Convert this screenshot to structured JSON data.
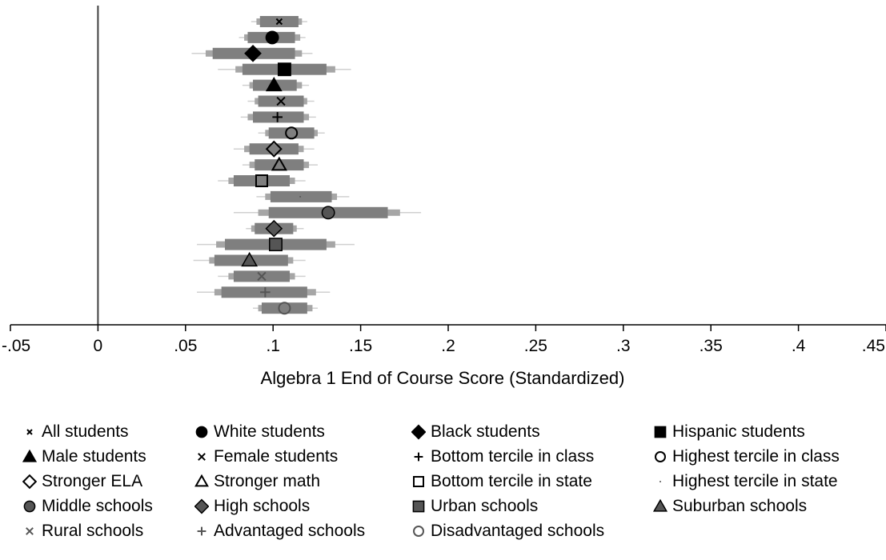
{
  "chart_data": {
    "type": "forest",
    "xlabel": "Algebra 1 End of Course Score (Standardized)",
    "xlim": [
      -0.05,
      0.45
    ],
    "xticks": [
      {
        "value": -0.05,
        "label": "-.05"
      },
      {
        "value": 0,
        "label": "0"
      },
      {
        "value": 0.05,
        "label": ".05"
      },
      {
        "value": 0.1,
        "label": ".1"
      },
      {
        "value": 0.15,
        "label": ".15"
      },
      {
        "value": 0.2,
        "label": ".2"
      },
      {
        "value": 0.25,
        "label": ".25"
      },
      {
        "value": 0.3,
        "label": ".3"
      },
      {
        "value": 0.35,
        "label": ".35"
      },
      {
        "value": 0.4,
        "label": ".4"
      },
      {
        "value": 0.45,
        "label": ".45"
      }
    ],
    "reference_line": 0,
    "grid": false,
    "legend_position": "bottom",
    "series": [
      {
        "name": "All students",
        "marker": "x-small",
        "fill": "#000000",
        "estimate": 0.1035,
        "ci90": [
          0.0925,
          0.1145
        ],
        "ci95": [
          0.0905,
          0.1165
        ],
        "ci99": [
          0.0875,
          0.1195
        ]
      },
      {
        "name": "White students",
        "marker": "circle",
        "fill": "#000000",
        "estimate": 0.0995,
        "ci90": [
          0.0855,
          0.1125
        ],
        "ci95": [
          0.0835,
          0.1155
        ],
        "ci99": [
          0.0805,
          0.1185
        ]
      },
      {
        "name": "Black students",
        "marker": "diamond",
        "fill": "#000000",
        "estimate": 0.0885,
        "ci90": [
          0.0655,
          0.1125
        ],
        "ci95": [
          0.0615,
          0.1165
        ],
        "ci99": [
          0.0535,
          0.1225
        ]
      },
      {
        "name": "Hispanic students",
        "marker": "square",
        "fill": "#000000",
        "estimate": 0.1065,
        "ci90": [
          0.0825,
          0.1305
        ],
        "ci95": [
          0.0785,
          0.1355
        ],
        "ci99": [
          0.0685,
          0.1445
        ]
      },
      {
        "name": "Male students",
        "marker": "triangle",
        "fill": "#000000",
        "estimate": 0.1005,
        "ci90": [
          0.0885,
          0.1135
        ],
        "ci95": [
          0.0865,
          0.1165
        ],
        "ci99": [
          0.0825,
          0.1205
        ]
      },
      {
        "name": "Female students",
        "marker": "x",
        "fill": "#000000",
        "estimate": 0.1045,
        "ci90": [
          0.0915,
          0.1175
        ],
        "ci95": [
          0.0895,
          0.1195
        ],
        "ci99": [
          0.0855,
          0.1235
        ]
      },
      {
        "name": "Bottom tercile in class",
        "marker": "plus",
        "fill": "#000000",
        "estimate": 0.1025,
        "ci90": [
          0.0885,
          0.1175
        ],
        "ci95": [
          0.0855,
          0.1205
        ],
        "ci99": [
          0.0815,
          0.1245
        ]
      },
      {
        "name": "Highest tercile in class",
        "marker": "circle-hollow",
        "fill": "#000000",
        "estimate": 0.1105,
        "ci90": [
          0.0975,
          0.1235
        ],
        "ci95": [
          0.0955,
          0.1255
        ],
        "ci99": [
          0.0915,
          0.1295
        ]
      },
      {
        "name": "Stronger ELA",
        "marker": "diamond-hollow",
        "fill": "#000000",
        "estimate": 0.1005,
        "ci90": [
          0.0865,
          0.1145
        ],
        "ci95": [
          0.0835,
          0.1175
        ],
        "ci99": [
          0.0775,
          0.1235
        ]
      },
      {
        "name": "Stronger math",
        "marker": "triangle-hollow",
        "fill": "#000000",
        "estimate": 0.1035,
        "ci90": [
          0.0895,
          0.1175
        ],
        "ci95": [
          0.0865,
          0.1205
        ],
        "ci99": [
          0.0825,
          0.1255
        ]
      },
      {
        "name": "Bottom tercile in state",
        "marker": "square-hollow",
        "fill": "#000000",
        "estimate": 0.0935,
        "ci90": [
          0.0775,
          0.1095
        ],
        "ci95": [
          0.0745,
          0.1125
        ],
        "ci99": [
          0.0685,
          0.1185
        ]
      },
      {
        "name": "Highest tercile in state",
        "marker": "dot",
        "fill": "#555555",
        "estimate": 0.1155,
        "ci90": [
          0.0985,
          0.1335
        ],
        "ci95": [
          0.0955,
          0.1365
        ],
        "ci99": [
          0.0905,
          0.1435
        ]
      },
      {
        "name": "Middle schools",
        "marker": "circle",
        "fill": "#555555",
        "estimate": 0.1315,
        "ci90": [
          0.0975,
          0.1655
        ],
        "ci95": [
          0.0915,
          0.1725
        ],
        "ci99": [
          0.0775,
          0.1845
        ]
      },
      {
        "name": "High schools",
        "marker": "diamond",
        "fill": "#555555",
        "estimate": 0.1005,
        "ci90": [
          0.0895,
          0.1115
        ],
        "ci95": [
          0.0875,
          0.1135
        ],
        "ci99": [
          0.0845,
          0.1175
        ]
      },
      {
        "name": "Urban schools",
        "marker": "square",
        "fill": "#555555",
        "estimate": 0.1015,
        "ci90": [
          0.0725,
          0.1305
        ],
        "ci95": [
          0.0675,
          0.1355
        ],
        "ci99": [
          0.0565,
          0.1465
        ]
      },
      {
        "name": "Suburban schools",
        "marker": "triangle",
        "fill": "#555555",
        "estimate": 0.0865,
        "ci90": [
          0.0665,
          0.1085
        ],
        "ci95": [
          0.0635,
          0.1115
        ],
        "ci99": [
          0.0545,
          0.1185
        ]
      },
      {
        "name": "Rural schools",
        "marker": "x",
        "fill": "#555555",
        "estimate": 0.0935,
        "ci90": [
          0.0775,
          0.1095
        ],
        "ci95": [
          0.0745,
          0.1125
        ],
        "ci99": [
          0.0685,
          0.1185
        ]
      },
      {
        "name": "Advantaged schools",
        "marker": "plus",
        "fill": "#555555",
        "estimate": 0.0955,
        "ci90": [
          0.0705,
          0.1195
        ],
        "ci95": [
          0.0665,
          0.1245
        ],
        "ci99": [
          0.0565,
          0.1325
        ]
      },
      {
        "name": "Disadvantaged schools",
        "marker": "circle-hollow",
        "fill": "#555555",
        "estimate": 0.1065,
        "ci90": [
          0.0935,
          0.1195
        ],
        "ci95": [
          0.0915,
          0.1225
        ],
        "ci99": [
          0.0885,
          0.1255
        ]
      }
    ]
  },
  "colors": {
    "ci90": "#7f7f7f",
    "ci95": "#a6a6a6",
    "ci99": "#d0d0d0",
    "axis": "#000000",
    "reference_line": "#404040"
  }
}
